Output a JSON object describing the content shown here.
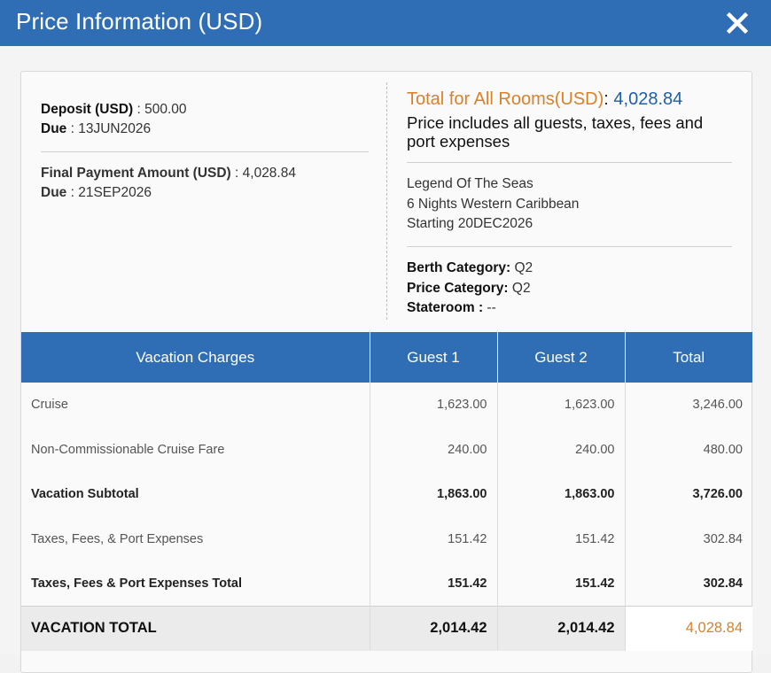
{
  "header": {
    "title": "Price Information (USD)"
  },
  "deposit": {
    "label": "Deposit (USD)",
    "value": ": 500.00",
    "due_label": "Due",
    "due_value": ": 13JUN2026"
  },
  "final_payment": {
    "label": "Final Payment Amount (USD)",
    "value": ": 4,028.84",
    "due_label": "Due",
    "due_value": ": 21SEP2026"
  },
  "summary": {
    "total_label": "Total for All Rooms(USD)",
    "total_colon": ":",
    "total_value": " 4,028.84",
    "includes": "Price includes all guests, taxes, fees and port expenses"
  },
  "ship": {
    "name": "Legend Of The Seas",
    "itinerary": "6 Nights Western Caribbean",
    "starting": "Starting 20DEC2026"
  },
  "categories": {
    "berth_label": "Berth Category:",
    "berth_value": " Q2",
    "price_label": "Price Category:",
    "price_value": " Q2",
    "stateroom_label": "Stateroom :",
    "stateroom_value": " --"
  },
  "table": {
    "headers": [
      "Vacation Charges",
      "Guest 1",
      "Guest 2",
      "Total"
    ],
    "rows": [
      [
        "Cruise",
        "1,623.00",
        "1,623.00",
        "3,246.00"
      ],
      [
        "Non-Commissionable Cruise Fare",
        "240.00",
        "240.00",
        "480.00"
      ],
      [
        "Vacation Subtotal",
        "1,863.00",
        "1,863.00",
        "3,726.00"
      ],
      [
        "Taxes, Fees, & Port Expenses",
        "151.42",
        "151.42",
        "302.84"
      ],
      [
        "Taxes, Fees & Port Expenses Total",
        "151.42",
        "151.42",
        "302.84"
      ]
    ],
    "total_row": [
      "VACATION TOTAL",
      "2,014.42",
      "2,014.42",
      "4,028.84"
    ]
  },
  "colors": {
    "header_blue": "#2f6db5",
    "accent_orange": "#d7822b",
    "value_blue": "#1f5ea8"
  },
  "icons": {
    "close": "close-icon"
  }
}
